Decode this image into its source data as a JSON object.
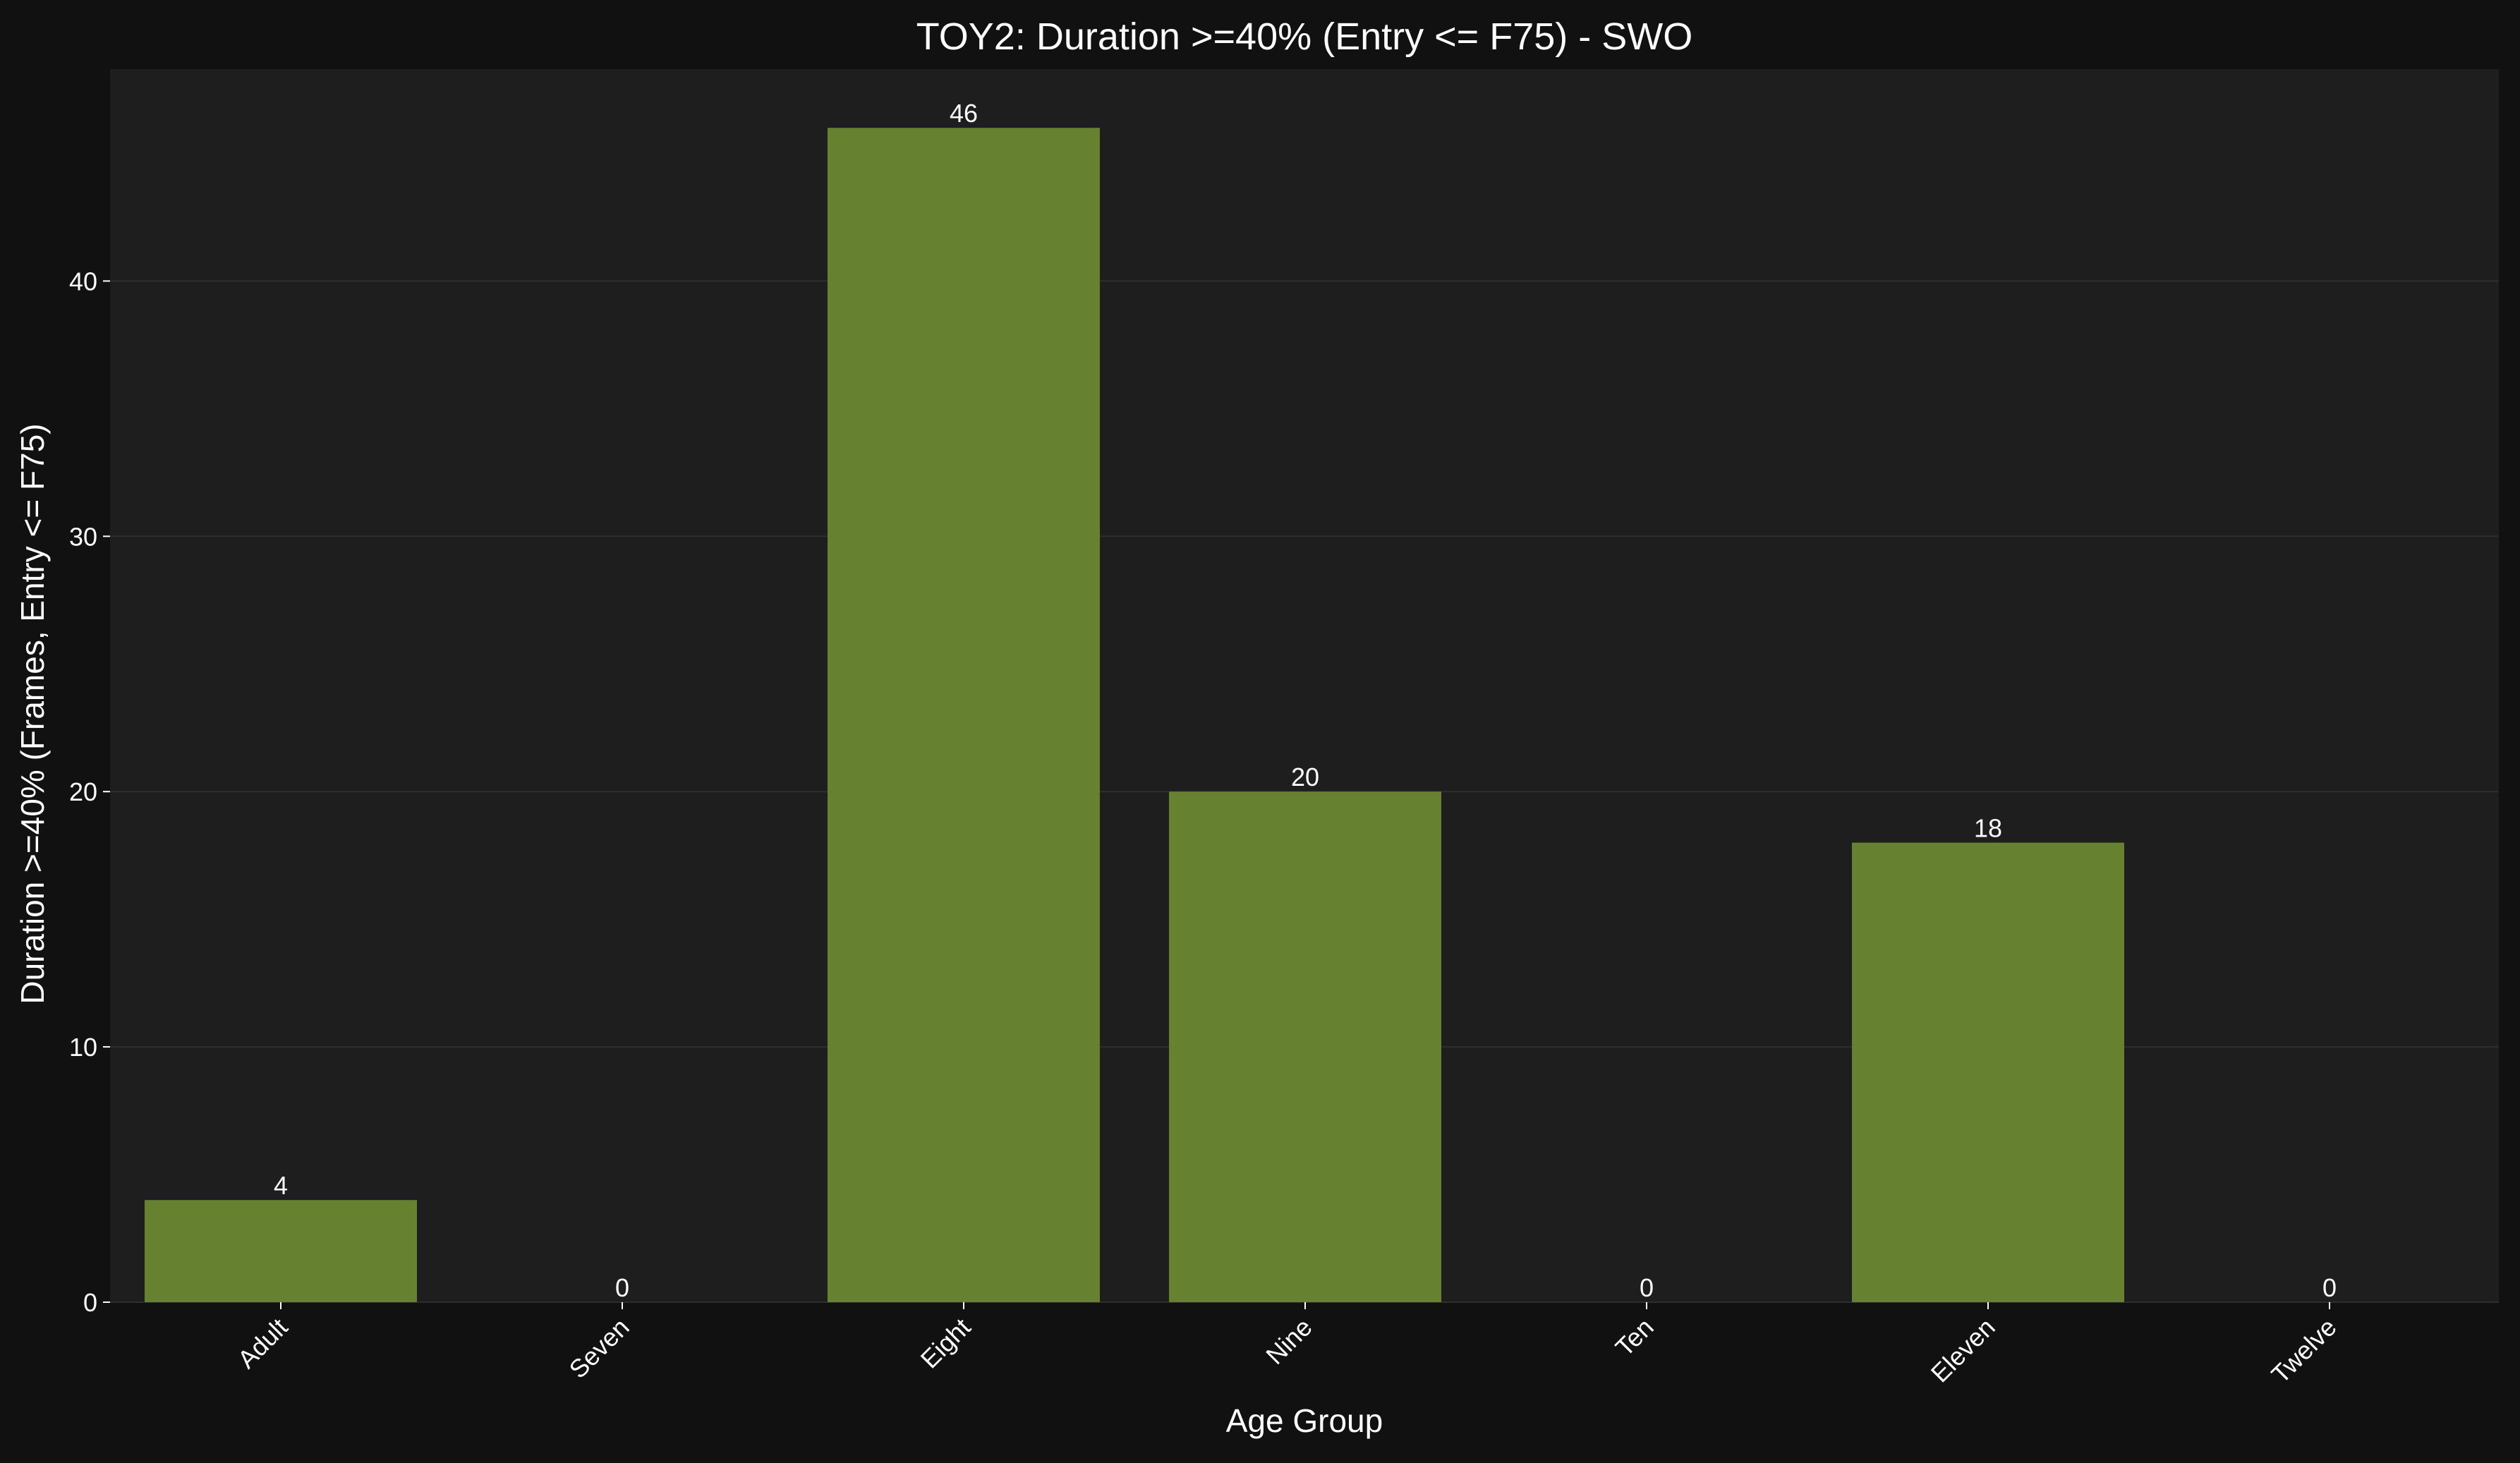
{
  "chart_data": {
    "type": "bar",
    "title": "TOY2: Duration >=40% (Entry <= F75) - SWO",
    "xlabel": "Age Group",
    "ylabel": "Duration >=40% (Frames, Entry <= F75)",
    "categories": [
      "Adult",
      "Seven",
      "Eight",
      "Nine",
      "Ten",
      "Eleven",
      "Twelve"
    ],
    "values": [
      4,
      0,
      46,
      20,
      0,
      18,
      0
    ],
    "value_labels": [
      "4",
      "0",
      "46",
      "20",
      "0",
      "18",
      "0"
    ],
    "yticks": [
      0,
      10,
      20,
      30,
      40
    ],
    "ytick_labels": [
      "0",
      "10",
      "20",
      "30",
      "40"
    ],
    "ylim": [
      0,
      48.3
    ],
    "grid": "horizontal",
    "legend": "none",
    "colors": {
      "bar": "#668130",
      "plot_background": "#1e1e1e",
      "figure_background": "#111111",
      "grid": "#2e2e2e",
      "text": "#ffffff"
    }
  }
}
